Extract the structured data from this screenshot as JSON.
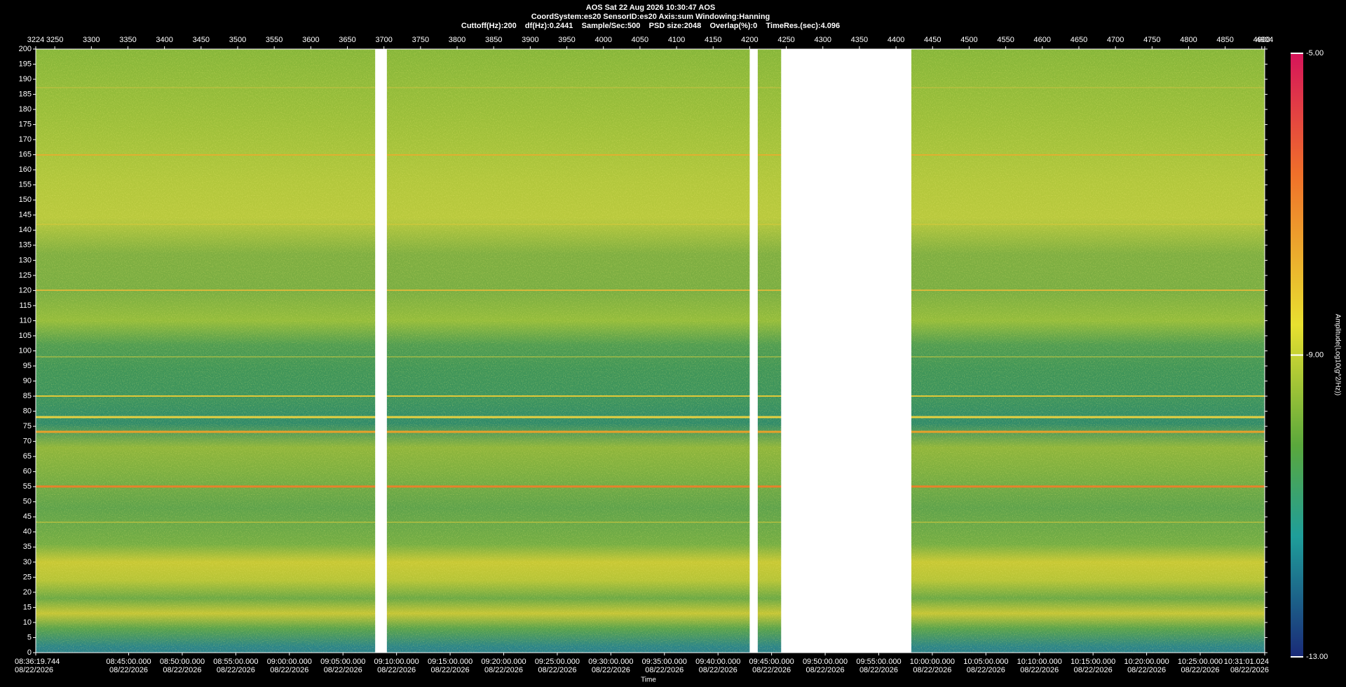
{
  "chart_data": {
    "type": "spectrogram",
    "title": "AOS  Sat 22 Aug 2026 10:30:47  AOS",
    "subtitle": "CoordSystem:es20   SensorID:es20   Axis:sum   Windowing:Hanning",
    "settings_line": "Cuttoff(Hz):200    df(Hz):0.2441    Sample/Sec:500    PSD size:2048    Overlap(%):0    TimeRes.(sec):4.096",
    "x_label": "Time",
    "colorbar_label": "Amplitude(Log10(g^2/Hz))",
    "date": "08/22/2026",
    "xlim": [
      3224,
      4904
    ],
    "xticks": [
      3224,
      3250,
      3300,
      3350,
      3400,
      3450,
      3500,
      3550,
      3600,
      3650,
      3700,
      3750,
      3800,
      3850,
      3900,
      3950,
      4000,
      4050,
      4100,
      4150,
      4200,
      4250,
      4300,
      4350,
      4400,
      4450,
      4500,
      4550,
      4600,
      4650,
      4700,
      4750,
      4800,
      4850,
      4900,
      4904
    ],
    "x2lim": [
      30979.744,
      37861.024
    ],
    "x2ticks": [
      {
        "value": 30979.744,
        "label": "08:36:19.744"
      },
      {
        "value": 31500,
        "label": "08:45:00.000"
      },
      {
        "value": 31800,
        "label": "08:50:00.000"
      },
      {
        "value": 32100,
        "label": "08:55:00.000"
      },
      {
        "value": 32400,
        "label": "09:00:00.000"
      },
      {
        "value": 32700,
        "label": "09:05:00.000"
      },
      {
        "value": 33000,
        "label": "09:10:00.000"
      },
      {
        "value": 33300,
        "label": "09:15:00.000"
      },
      {
        "value": 33600,
        "label": "09:20:00.000"
      },
      {
        "value": 33900,
        "label": "09:25:00.000"
      },
      {
        "value": 34200,
        "label": "09:30:00.000"
      },
      {
        "value": 34500,
        "label": "09:35:00.000"
      },
      {
        "value": 34800,
        "label": "09:40:00.000"
      },
      {
        "value": 35100,
        "label": "09:45:00.000"
      },
      {
        "value": 35400,
        "label": "09:50:00.000"
      },
      {
        "value": 35700,
        "label": "09:55:00.000"
      },
      {
        "value": 36000,
        "label": "10:00:00.000"
      },
      {
        "value": 36300,
        "label": "10:05:00.000"
      },
      {
        "value": 36600,
        "label": "10:10:00.000"
      },
      {
        "value": 36900,
        "label": "10:15:00.000"
      },
      {
        "value": 37200,
        "label": "10:20:00.000"
      },
      {
        "value": 37500,
        "label": "10:25:00.000"
      },
      {
        "value": 37861.024,
        "label": "10:31:01.024"
      }
    ],
    "ylim": [
      0,
      200
    ],
    "yticks": [
      0,
      5,
      10,
      15,
      20,
      25,
      30,
      35,
      40,
      45,
      50,
      55,
      60,
      65,
      70,
      75,
      80,
      85,
      90,
      95,
      100,
      105,
      110,
      115,
      120,
      125,
      130,
      135,
      140,
      145,
      150,
      155,
      160,
      165,
      170,
      175,
      180,
      185,
      190,
      195,
      200
    ],
    "gaps": [
      [
        3688,
        3704
      ],
      [
        4200,
        4211
      ],
      [
        4243,
        4421
      ]
    ],
    "clim": [
      -13,
      -5
    ],
    "cticks": [
      {
        "value": -5,
        "label": "-5.00"
      },
      {
        "value": -9,
        "label": "-9.00"
      },
      {
        "value": -13,
        "label": "-13.00"
      }
    ]
  }
}
